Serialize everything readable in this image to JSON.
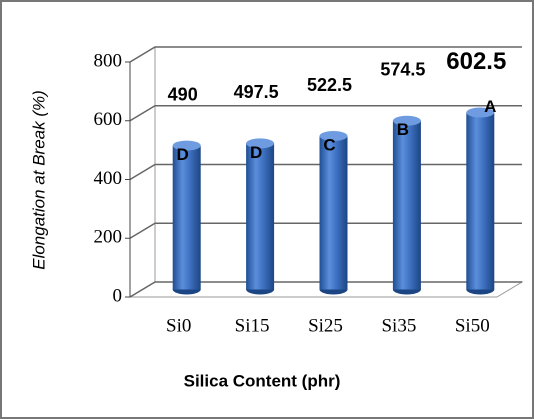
{
  "chart_data": {
    "type": "bar",
    "x_label": "Silica Content (phr)",
    "y_label": "Elongation at Break (%)",
    "categories": [
      "Si0",
      "Si15",
      "Si25",
      "Si35",
      "Si50"
    ],
    "values": [
      490,
      497.5,
      522.5,
      574.5,
      602.5
    ],
    "annotations": [
      "D",
      "D",
      "C",
      "B",
      "A"
    ],
    "color": "#3f72c2",
    "ylim": [
      0,
      800
    ],
    "yticks": [
      0,
      200,
      400,
      600,
      800
    ],
    "grid": true
  }
}
